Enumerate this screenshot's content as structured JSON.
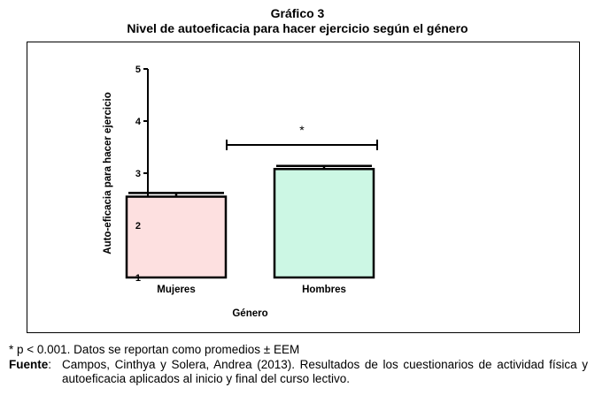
{
  "figure": {
    "title": "Gráfico 3",
    "subtitle": "Nivel de autoeficacia para hacer ejercicio según el género"
  },
  "chart_data": {
    "type": "bar",
    "categories": [
      "Mujeres",
      "Hombres"
    ],
    "values": [
      2.55,
      3.08
    ],
    "errors": [
      0.07,
      0.06
    ],
    "xlabel": "Género",
    "ylabel": "Auto-eficacia para hacer ejercicio",
    "ylim": [
      1,
      5
    ],
    "yticks": [
      1,
      2,
      3,
      4,
      5
    ],
    "bar_colors": [
      "#fde0e0",
      "#ccf7e4"
    ],
    "grid": false,
    "significance": {
      "between": [
        "Mujeres",
        "Hombres"
      ],
      "label": "*"
    }
  },
  "notes": {
    "footnote": "* p < 0.001. Datos se reportan como promedios ± EEM",
    "source_label": "Fuente",
    "source_colon": ":",
    "source_text": "Campos, Cinthya y Solera, Andrea (2013). Resultados de los cuestionarios de actividad física y autoeficacia aplicados al inicio y final del curso lectivo."
  }
}
